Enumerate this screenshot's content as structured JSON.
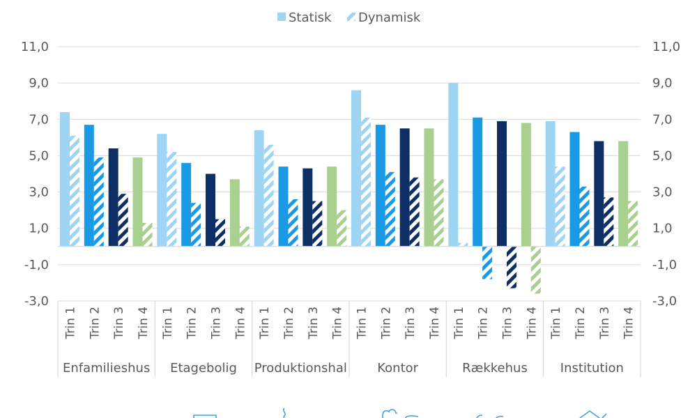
{
  "chart_data": {
    "type": "bar",
    "legend": {
      "position": "top",
      "items": [
        {
          "name": "Statisk",
          "style": "solid"
        },
        {
          "name": "Dynamisk",
          "style": "hatched"
        }
      ]
    },
    "ylim": [
      -3,
      11
    ],
    "yticks": [
      "11,0",
      "9,0",
      "7,0",
      "5,0",
      "3,0",
      "1,0",
      "-1,0",
      "-3,0"
    ],
    "ytick_values": [
      11,
      9,
      7,
      5,
      3,
      1,
      -1,
      -3
    ],
    "y_axes": [
      "left",
      "right"
    ],
    "grid": true,
    "categories": [
      "Trin 1",
      "Trin 2",
      "Trin 3",
      "Trin 4"
    ],
    "category_colors": [
      "#9ed5f5",
      "#1a9ae5",
      "#0d2f66",
      "#a9d08e"
    ],
    "groups": [
      {
        "name": "Enfamilieshus",
        "statisk": [
          7.4,
          6.7,
          5.4,
          4.9
        ],
        "dynamisk": [
          6.1,
          4.9,
          2.9,
          1.3
        ]
      },
      {
        "name": "Etagebolig",
        "statisk": [
          6.2,
          4.6,
          4.0,
          3.7
        ],
        "dynamisk": [
          5.2,
          2.4,
          1.5,
          1.1
        ]
      },
      {
        "name": "Produktionshal",
        "statisk": [
          6.4,
          4.4,
          4.3,
          4.4
        ],
        "dynamisk": [
          5.6,
          2.6,
          2.5,
          2.0
        ]
      },
      {
        "name": "Kontor",
        "statisk": [
          8.6,
          6.7,
          6.5,
          6.5
        ],
        "dynamisk": [
          7.1,
          4.1,
          3.8,
          3.7
        ]
      },
      {
        "name": "Rækkehus",
        "statisk": [
          9.0,
          7.1,
          6.9,
          6.8
        ],
        "dynamisk": [
          0.2,
          -1.8,
          -2.3,
          -2.6
        ]
      },
      {
        "name": "Institution",
        "statisk": [
          6.9,
          6.3,
          5.8,
          5.8
        ],
        "dynamisk": [
          4.4,
          3.3,
          2.7,
          2.5
        ]
      }
    ]
  },
  "footer_icons": [
    "window-icon",
    "heat-icon",
    "cloud-icon",
    "ventilation-icon",
    "house-icon"
  ]
}
